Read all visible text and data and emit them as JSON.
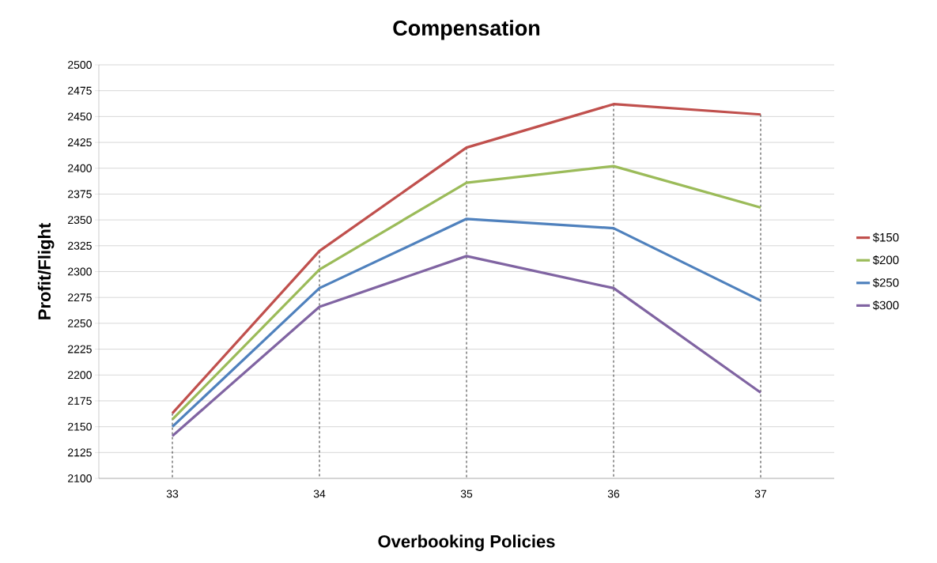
{
  "chart_data": {
    "type": "line",
    "title": "Compensation",
    "xlabel": "Overbooking Policies",
    "ylabel": "Profit/Flight",
    "categories": [
      "33",
      "34",
      "35",
      "36",
      "37"
    ],
    "series": [
      {
        "name": "$150",
        "color": "#c0504d",
        "values": [
          2163,
          2320,
          2420,
          2462,
          2452
        ]
      },
      {
        "name": "$200",
        "color": "#9bbb59",
        "values": [
          2157,
          2302,
          2386,
          2402,
          2362
        ]
      },
      {
        "name": "$250",
        "color": "#4f81bd",
        "values": [
          2150,
          2284,
          2351,
          2342,
          2272
        ]
      },
      {
        "name": "$300",
        "color": "#8064a2",
        "values": [
          2141,
          2266,
          2315,
          2284,
          2183
        ]
      }
    ],
    "ylim": [
      2100,
      2500
    ],
    "yticks": [
      2100,
      2125,
      2150,
      2175,
      2200,
      2225,
      2250,
      2275,
      2300,
      2325,
      2350,
      2375,
      2400,
      2425,
      2450,
      2475,
      2500
    ],
    "ref_lines": [
      {
        "axis": "x",
        "value": "33",
        "color": "#000000",
        "line_style": "dashed"
      },
      {
        "axis": "x",
        "value": "34",
        "color": "#000000",
        "line_style": "dashed"
      },
      {
        "axis": "x",
        "value": "35",
        "color": "#000000",
        "line_style": "dashed"
      },
      {
        "axis": "x",
        "value": "36",
        "color": "#000000",
        "line_style": "dashed"
      },
      {
        "axis": "x",
        "value": "37",
        "color": "#000000",
        "line_style": "dashed"
      }
    ],
    "grid": "y",
    "legend": "right",
    "marker": "none",
    "line_style": "solid"
  }
}
